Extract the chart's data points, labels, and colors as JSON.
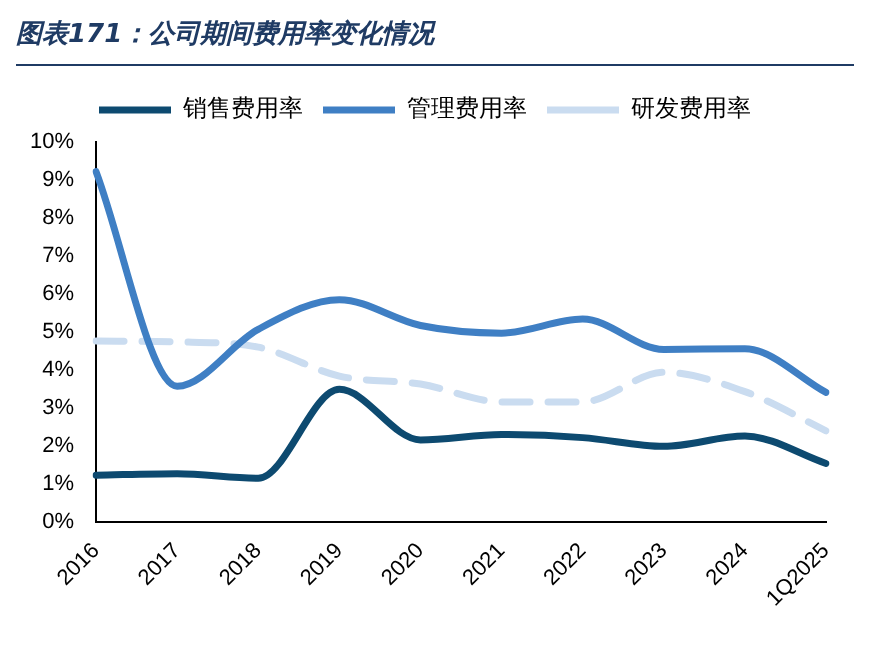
{
  "chart_data": {
    "type": "line",
    "title": "图表171：公司期间费用率变化情况",
    "categories": [
      "2016",
      "2017",
      "2018",
      "2019",
      "2020",
      "2021",
      "2022",
      "2023",
      "2024",
      "1Q2025"
    ],
    "series": [
      {
        "name": "销售费用率",
        "color": "#0d4a70",
        "values": [
          1.23,
          1.27,
          1.15,
          3.49,
          2.16,
          2.3,
          2.22,
          1.99,
          2.26,
          1.54
        ]
      },
      {
        "name": "管理费用率",
        "color": "#3f7fc4",
        "values": [
          9.22,
          3.57,
          5.07,
          5.85,
          5.17,
          4.97,
          5.34,
          4.54,
          4.56,
          3.41
        ]
      },
      {
        "name": "研发费用率",
        "color": "#cadcf0",
        "line_style": "dashed",
        "values": [
          4.76,
          4.74,
          4.6,
          3.84,
          3.63,
          3.16,
          3.16,
          3.94,
          3.43,
          2.4
        ]
      }
    ],
    "ylim": [
      0,
      10
    ],
    "yticks": [
      {
        "value": 0,
        "label": "0%"
      },
      {
        "value": 1,
        "label": "1%"
      },
      {
        "value": 2,
        "label": "2%"
      },
      {
        "value": 3,
        "label": "3%"
      },
      {
        "value": 4,
        "label": "4%"
      },
      {
        "value": 5,
        "label": "5%"
      },
      {
        "value": 6,
        "label": "6%"
      },
      {
        "value": 7,
        "label": "7%"
      },
      {
        "value": 8,
        "label": "8%"
      },
      {
        "value": 9,
        "label": "9%"
      },
      {
        "value": 10,
        "label": "10%"
      }
    ],
    "grid": false,
    "legend": "top",
    "marker": "none"
  }
}
